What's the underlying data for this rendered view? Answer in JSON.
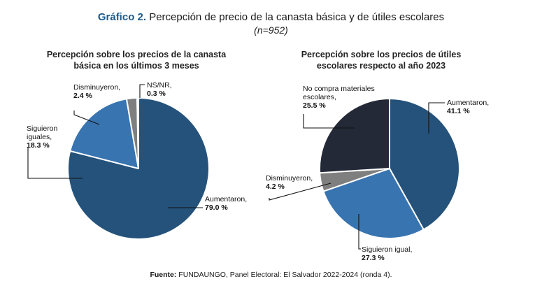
{
  "figure": {
    "title_lead": "Gráfico 2.",
    "title_rest": " Percepción de precio de la canasta básica y de útiles escolares",
    "subtitle": "(n=952)",
    "source_label": "Fuente:",
    "source_text": " FUNDAUNGO, Panel Electoral: El Salvador 2022-2024 (ronda 4)."
  },
  "chart_data": [
    {
      "type": "pie",
      "title_lines": [
        "Percepción sobre los precios de la canasta",
        "básica en los últimos 3 meses"
      ],
      "unit": "%",
      "slices": [
        {
          "name": "Aumentaron",
          "label_lines": [
            "Aumentaron,"
          ],
          "value": 79.0,
          "value_label": "79.0 %",
          "color": "#24527a"
        },
        {
          "name": "Siguieron iguales",
          "label_lines": [
            "Siguieron",
            "iguales,"
          ],
          "value": 18.3,
          "value_label": "18.3 %",
          "color": "#3874b0"
        },
        {
          "name": "Disminuyeron",
          "label_lines": [
            "Disminuyeron,"
          ],
          "value": 2.4,
          "value_label": "2.4 %",
          "color": "#7f7f7f"
        },
        {
          "name": "NS/NR",
          "label_lines": [
            "NS/NR,"
          ],
          "value": 0.3,
          "value_label": "0.3 %",
          "color": "#1a3550"
        }
      ]
    },
    {
      "type": "pie",
      "title_lines": [
        "Percepción sobre los precios de útiles",
        "escolares respecto al año 2023"
      ],
      "unit": "%",
      "slices": [
        {
          "name": "Aumentaron",
          "label_lines": [
            "Aumentaron,"
          ],
          "value": 41.1,
          "value_label": "41.1 %",
          "color": "#24527a"
        },
        {
          "name": "Siguieron igual",
          "label_lines": [
            "Siguieron igual,"
          ],
          "value": 27.3,
          "value_label": "27.3 %",
          "color": "#3874b0"
        },
        {
          "name": "Disminuyeron",
          "label_lines": [
            "Disminuyeron,"
          ],
          "value": 4.2,
          "value_label": "4.2 %",
          "color": "#7f7f7f"
        },
        {
          "name": "No compra materiales escolares",
          "label_lines": [
            "No compra materiales",
            "escolares,"
          ],
          "value": 25.5,
          "value_label": "25.5 %",
          "color": "#232936"
        }
      ]
    }
  ]
}
